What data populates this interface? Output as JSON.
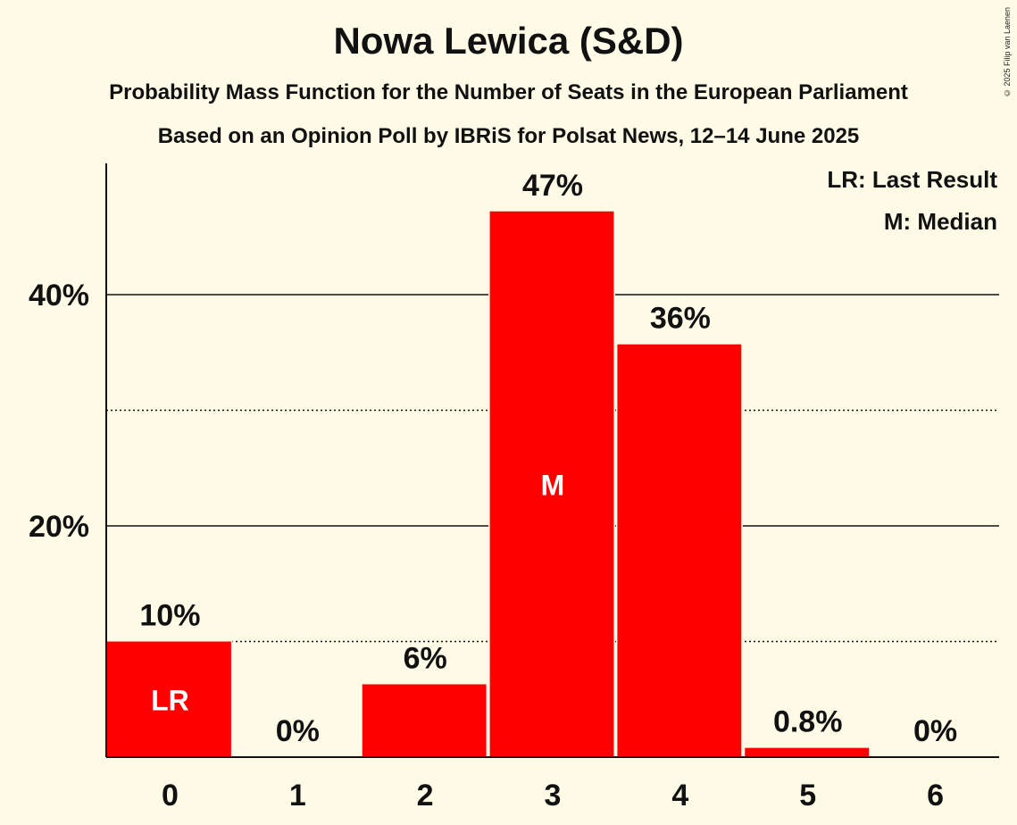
{
  "title": "Nowa Lewica (S&D)",
  "subtitle1": "Probability Mass Function for the Number of Seats in the European Parliament",
  "subtitle2": "Based on an Opinion Poll by IBRiS for Polsat News, 12–14 June 2025",
  "copyright": "© 2025 Filip van Laenen",
  "legend": {
    "last_result": "LR: Last Result",
    "median": "M: Median"
  },
  "colors": {
    "bar": "#ff0000",
    "background": "#fffbe6",
    "text": "#111111"
  },
  "chart_data": {
    "type": "bar",
    "title": "Nowa Lewica (S&D)",
    "categories": [
      "0",
      "1",
      "2",
      "3",
      "4",
      "5",
      "6"
    ],
    "values": [
      10,
      0,
      6.3,
      47.2,
      35.7,
      0.8,
      0
    ],
    "value_labels": [
      "10%",
      "0%",
      "6%",
      "47%",
      "36%",
      "0.8%",
      "0%"
    ],
    "bar_markers": [
      "LR",
      "",
      "",
      "M",
      "",
      "",
      ""
    ],
    "ylim": [
      0,
      50
    ],
    "yticks": [
      20,
      40
    ],
    "ytick_labels": [
      "20%",
      "40%"
    ],
    "minor_gridlines": [
      10,
      30
    ],
    "legend_position": "top-right"
  }
}
